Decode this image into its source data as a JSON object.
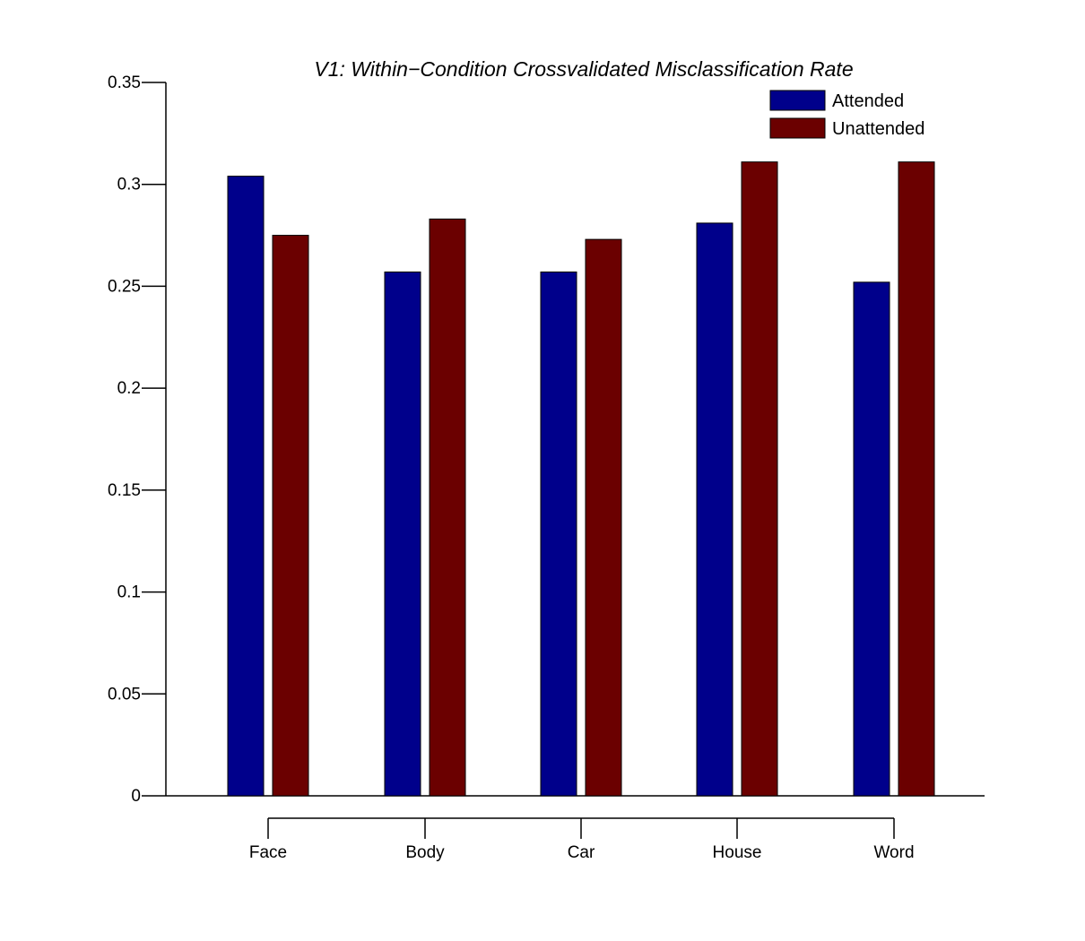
{
  "chart_data": {
    "type": "bar",
    "title": "V1: Within−Condition Crossvalidated Misclassification Rate",
    "xlabel": "",
    "ylabel": "",
    "categories": [
      "Face",
      "Body",
      "Car",
      "House",
      "Word"
    ],
    "series": [
      {
        "name": "Attended",
        "color": "#00008b",
        "values": [
          0.304,
          0.257,
          0.257,
          0.281,
          0.252
        ]
      },
      {
        "name": "Unattended",
        "color": "#6b0000",
        "values": [
          0.275,
          0.283,
          0.273,
          0.311,
          0.311
        ]
      }
    ],
    "ylim": [
      0,
      0.35
    ],
    "yticks": [
      "0",
      "0.05",
      "0.1",
      "0.15",
      "0.2",
      "0.25",
      "0.3",
      "0.35"
    ],
    "grid": false,
    "legend_position": "top-right"
  }
}
